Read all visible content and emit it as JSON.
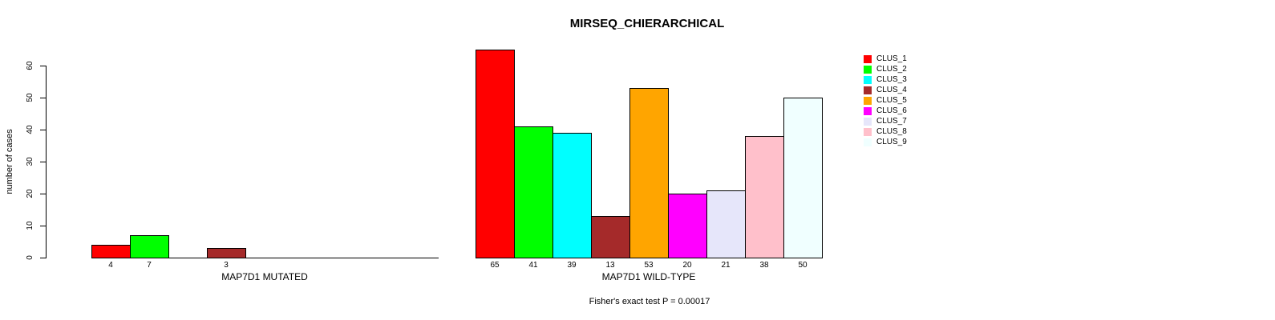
{
  "chart_data": {
    "type": "bar",
    "title": "MIRSEQ_CHIERARCHICAL",
    "ylabel": "number of cases",
    "ylim": [
      0,
      60
    ],
    "yticks": [
      0,
      10,
      20,
      30,
      40,
      50,
      60
    ],
    "clusters": [
      "CLUS_1",
      "CLUS_2",
      "CLUS_3",
      "CLUS_4",
      "CLUS_5",
      "CLUS_6",
      "CLUS_7",
      "CLUS_8",
      "CLUS_9"
    ],
    "colors": [
      "#ff0000",
      "#00ff00",
      "#00ffff",
      "#a52a2a",
      "#ffa500",
      "#ff00ff",
      "#e6e6fa",
      "#ffc0cb",
      "#f0ffff"
    ],
    "groups": [
      {
        "label": "MAP7D1 MUTATED",
        "values": [
          4,
          7,
          0,
          3,
          0,
          0,
          0,
          0,
          0
        ]
      },
      {
        "label": "MAP7D1 WILD-TYPE",
        "values": [
          65,
          41,
          39,
          13,
          53,
          20,
          21,
          38,
          50
        ]
      }
    ],
    "annotation": "Fisher's exact test P = 0.00017",
    "legend_position": "right",
    "grid": false,
    "bar_label_rule": "only non-zero bars are labeled with their value"
  }
}
